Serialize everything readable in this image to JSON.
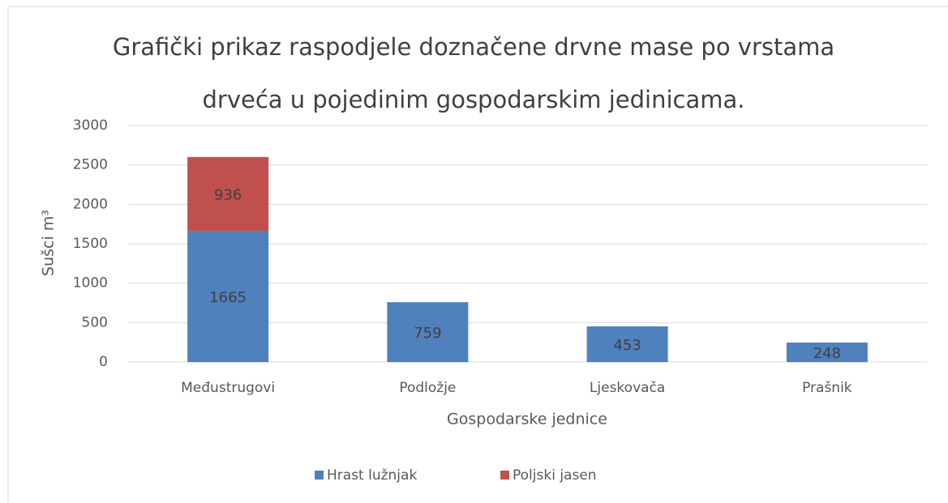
{
  "chart_data": {
    "type": "stacked-bar",
    "title": [
      "Grafički prikaz raspodjele doznačene drvne mase po vrstama",
      "drveća u pojedinim gospodarskim jedinicama."
    ],
    "x_label": "Gospodarske jednice",
    "y_label": "Sušci m³",
    "categories": [
      "Međustrugovi",
      "Podložje",
      "Ljeskovača",
      "Prašnik"
    ],
    "series": [
      {
        "name": "Hrast lužnjak",
        "color": "#4f81bd",
        "values": [
          1665,
          759,
          453,
          248
        ]
      },
      {
        "name": "Poljski jasen",
        "color": "#c0504d",
        "values": [
          936,
          null,
          null,
          null
        ]
      }
    ],
    "ylim": [
      0,
      3000
    ],
    "yticks": [
      0,
      500,
      1000,
      1500,
      2000,
      2500,
      3000
    ],
    "grid": true,
    "legend": "bottom"
  }
}
